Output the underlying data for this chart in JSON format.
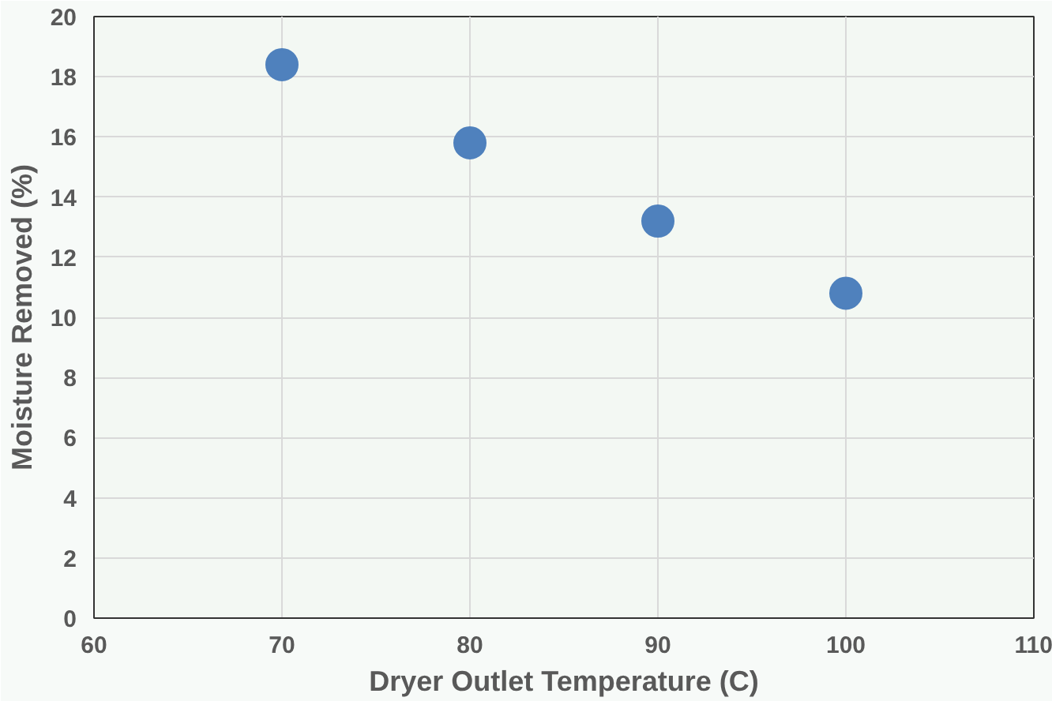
{
  "chart_data": {
    "type": "scatter",
    "xlabel": "Dryer Outlet Temperature (C)",
    "ylabel": "Moisture Removed (%)",
    "x": [
      70,
      80,
      90,
      100
    ],
    "series": [
      {
        "color": "#4f81bd",
        "values": [
          18.4,
          15.8,
          13.2,
          10.8
        ]
      }
    ],
    "xlim": [
      60,
      110
    ],
    "xticks": [
      60,
      70,
      80,
      90,
      100,
      110
    ],
    "ylim": [
      0,
      20
    ],
    "yticks": [
      0,
      2,
      4,
      6,
      8,
      10,
      12,
      14,
      16,
      18,
      20
    ],
    "grid": true,
    "marker": "circle"
  }
}
